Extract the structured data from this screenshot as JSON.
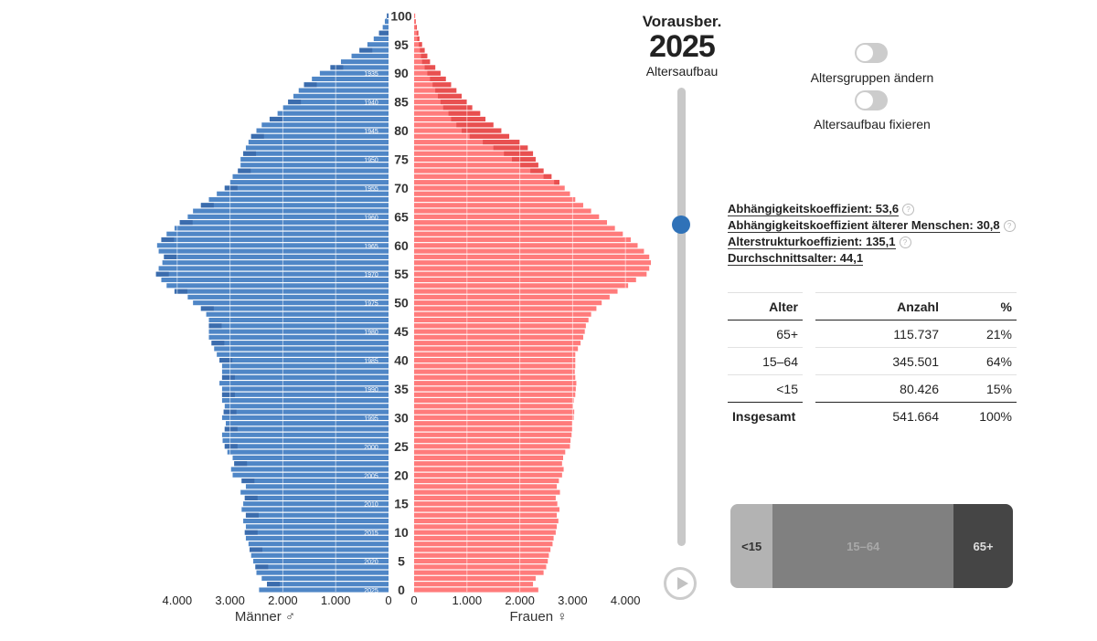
{
  "header": {
    "forecast_label": "Vorausber.",
    "year": "2025",
    "mode_label": "Altersaufbau"
  },
  "toggles": [
    {
      "label": "Altersgruppen ändern",
      "on": false
    },
    {
      "label": "Altersaufbau fixieren",
      "on": false
    }
  ],
  "coefficients": [
    {
      "label": "Abhängigkeitskoeffizient: 53,6",
      "help": true
    },
    {
      "label": "Abhängigkeitskoeffizient älterer Menschen: 30,8",
      "help": true
    },
    {
      "label": "Alterstrukturkoeffizient: 135,1",
      "help": true
    },
    {
      "label": "Durchschnittsalter: 44,1",
      "help": false
    }
  ],
  "age_table": {
    "headers": [
      "Alter",
      "Anzahl",
      "%"
    ],
    "rows": [
      [
        "65+",
        "115.737",
        "21%"
      ],
      [
        "15–64",
        "345.501",
        "64%"
      ],
      [
        "<15",
        "80.426",
        "15%"
      ]
    ],
    "total": [
      "Insgesamt",
      "541.664",
      "100%"
    ]
  },
  "share_bar": [
    {
      "label": "<15",
      "share": 0.15,
      "color": "#b3b3b3",
      "text_color": "#333333"
    },
    {
      "label": "15–64",
      "share": 0.64,
      "color": "#808080",
      "text_color": "#a8a8a8"
    },
    {
      "label": "65+",
      "share": 0.21,
      "color": "#454545",
      "text_color": "#dddddd"
    }
  ],
  "slider": {
    "position": 0.3
  },
  "chart_data": {
    "type": "bar",
    "orientation": "horizontal-pyramid",
    "colors": {
      "men": "#4f86c6",
      "men_dark": "#3b6cad",
      "women": "#ff7b7b",
      "women_dark": "#e85050"
    },
    "age_ticks": [
      0,
      5,
      10,
      15,
      20,
      25,
      30,
      35,
      40,
      45,
      50,
      55,
      60,
      65,
      70,
      75,
      80,
      85,
      90,
      95,
      100
    ],
    "birth_year_ticks": [
      {
        "age": 90,
        "label": "1935"
      },
      {
        "age": 85,
        "label": "1940"
      },
      {
        "age": 80,
        "label": "1945"
      },
      {
        "age": 75,
        "label": "1950"
      },
      {
        "age": 70,
        "label": "1955"
      },
      {
        "age": 65,
        "label": "1960"
      },
      {
        "age": 60,
        "label": "1965"
      },
      {
        "age": 55,
        "label": "1970"
      },
      {
        "age": 50,
        "label": "1975"
      },
      {
        "age": 45,
        "label": "1980"
      },
      {
        "age": 40,
        "label": "1985"
      },
      {
        "age": 35,
        "label": "1990"
      },
      {
        "age": 30,
        "label": "1995"
      },
      {
        "age": 25,
        "label": "2000"
      },
      {
        "age": 20,
        "label": "2005"
      },
      {
        "age": 15,
        "label": "2010"
      },
      {
        "age": 10,
        "label": "2015"
      },
      {
        "age": 5,
        "label": "2020"
      },
      {
        "age": 0,
        "label": "2025"
      }
    ],
    "x_ticks": [
      {
        "value": 4000,
        "label": "4.000"
      },
      {
        "value": 3000,
        "label": "3.000"
      },
      {
        "value": 2000,
        "label": "2.000"
      },
      {
        "value": 1000,
        "label": "1.000"
      },
      {
        "value": 0,
        "label": "0"
      }
    ],
    "xlim": [
      0,
      4000
    ],
    "men_label": "Männer ♂",
    "women_label": "Frauen ♀",
    "ages": [
      0,
      1,
      2,
      3,
      4,
      5,
      6,
      7,
      8,
      9,
      10,
      11,
      12,
      13,
      14,
      15,
      16,
      17,
      18,
      19,
      20,
      21,
      22,
      23,
      24,
      25,
      26,
      27,
      28,
      29,
      30,
      31,
      32,
      33,
      34,
      35,
      36,
      37,
      38,
      39,
      40,
      41,
      42,
      43,
      44,
      45,
      46,
      47,
      48,
      49,
      50,
      51,
      52,
      53,
      54,
      55,
      56,
      57,
      58,
      59,
      60,
      61,
      62,
      63,
      64,
      65,
      66,
      67,
      68,
      69,
      70,
      71,
      72,
      73,
      74,
      75,
      76,
      77,
      78,
      79,
      80,
      81,
      82,
      83,
      84,
      85,
      86,
      87,
      88,
      89,
      90,
      91,
      92,
      93,
      94,
      95,
      96,
      97,
      98,
      99,
      100
    ],
    "men": [
      2450,
      2300,
      2400,
      2500,
      2520,
      2560,
      2600,
      2630,
      2650,
      2700,
      2720,
      2700,
      2750,
      2700,
      2780,
      2750,
      2720,
      2800,
      2700,
      2780,
      2950,
      2980,
      2920,
      2950,
      3050,
      3100,
      3140,
      3150,
      3100,
      3080,
      3150,
      3120,
      3100,
      3150,
      3150,
      3150,
      3200,
      3150,
      3150,
      3150,
      3200,
      3250,
      3300,
      3350,
      3400,
      3400,
      3400,
      3400,
      3450,
      3550,
      3700,
      3800,
      4050,
      4200,
      4300,
      4400,
      4350,
      4280,
      4250,
      4350,
      4380,
      4300,
      4200,
      4050,
      3950,
      3800,
      3700,
      3550,
      3400,
      3250,
      3100,
      3000,
      2950,
      2850,
      2800,
      2800,
      2750,
      2700,
      2650,
      2600,
      2500,
      2400,
      2250,
      2100,
      2000,
      1900,
      1800,
      1700,
      1600,
      1450,
      1300,
      1100,
      900,
      700,
      550,
      400,
      280,
      180,
      110,
      70,
      30
    ],
    "women": [
      2350,
      2250,
      2300,
      2450,
      2500,
      2530,
      2550,
      2580,
      2620,
      2640,
      2680,
      2700,
      2730,
      2700,
      2750,
      2710,
      2680,
      2760,
      2700,
      2740,
      2800,
      2830,
      2800,
      2820,
      2860,
      2950,
      2960,
      2980,
      2990,
      2990,
      3020,
      3030,
      3010,
      3020,
      3050,
      3060,
      3070,
      3050,
      3040,
      3050,
      3050,
      3050,
      3100,
      3150,
      3200,
      3230,
      3250,
      3300,
      3350,
      3450,
      3550,
      3700,
      3850,
      4050,
      4200,
      4400,
      4450,
      4500,
      4450,
      4350,
      4230,
      4100,
      3950,
      3800,
      3650,
      3500,
      3350,
      3200,
      3050,
      2950,
      2850,
      2750,
      2600,
      2450,
      2350,
      2300,
      2250,
      2150,
      2000,
      1800,
      1650,
      1500,
      1350,
      1250,
      1100,
      1000,
      900,
      800,
      700,
      600,
      500,
      400,
      300,
      250,
      200,
      150,
      100,
      80,
      50,
      30,
      20
    ],
    "women_surplus": [
      0,
      0,
      0,
      0,
      0,
      0,
      0,
      0,
      0,
      0,
      0,
      0,
      0,
      0,
      0,
      0,
      0,
      0,
      0,
      0,
      0,
      0,
      0,
      0,
      0,
      0,
      0,
      0,
      0,
      0,
      0,
      0,
      0,
      0,
      0,
      0,
      0,
      0,
      0,
      0,
      0,
      0,
      0,
      0,
      0,
      0,
      0,
      0,
      0,
      0,
      0,
      0,
      0,
      0,
      0,
      0,
      0,
      0,
      0,
      0,
      0,
      0,
      0,
      0,
      0,
      0,
      0,
      0,
      0,
      0,
      0,
      100,
      150,
      250,
      350,
      450,
      550,
      650,
      700,
      750,
      750,
      700,
      650,
      600,
      550,
      500,
      450,
      400,
      350,
      300,
      250,
      200,
      150,
      120,
      90,
      60,
      40,
      30,
      20,
      10,
      0
    ]
  }
}
